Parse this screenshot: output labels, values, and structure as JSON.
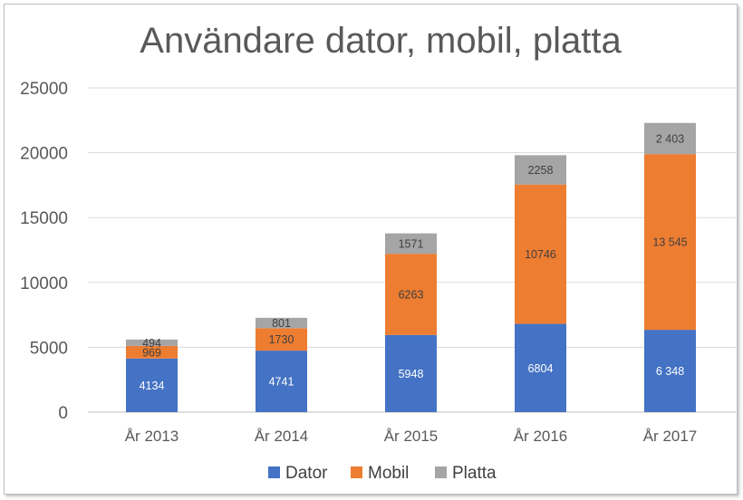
{
  "chart_data": {
    "type": "bar",
    "stacked": true,
    "title": "Användare dator, mobil, platta",
    "xlabel": "",
    "ylabel": "",
    "ylim": [
      0,
      25000
    ],
    "yticks": [
      0,
      5000,
      10000,
      15000,
      20000,
      25000
    ],
    "ytick_labels": [
      "0",
      "5000",
      "10000",
      "15000",
      "20000",
      "25000"
    ],
    "grid": true,
    "legend_position": "bottom",
    "categories": [
      "År 2013",
      "År 2014",
      "År 2015",
      "År 2016",
      "År 2017"
    ],
    "series": [
      {
        "name": "Dator",
        "color": "#4472C4",
        "label_color": "#ffffff",
        "values": [
          4134,
          4741,
          5948,
          6804,
          6348
        ],
        "labels": [
          "4134",
          "4741",
          "5948",
          "6804",
          "6 348"
        ]
      },
      {
        "name": "Mobil",
        "color": "#ED7D31",
        "label_color": "#404040",
        "values": [
          969,
          1730,
          6263,
          10746,
          13545
        ],
        "labels": [
          "969",
          "1730",
          "6263",
          "10746",
          "13 545"
        ]
      },
      {
        "name": "Platta",
        "color": "#A5A5A5",
        "label_color": "#404040",
        "values": [
          494,
          801,
          1571,
          2258,
          2403
        ],
        "labels": [
          "494",
          "801",
          "1571",
          "2258",
          "2 403"
        ]
      }
    ]
  }
}
